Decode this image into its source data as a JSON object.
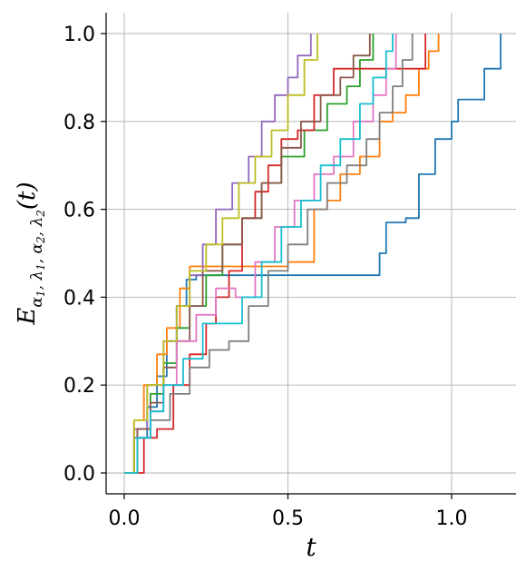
{
  "chart_data": {
    "type": "line",
    "xlabel": "t",
    "ylabel": "E_{α1,λ1,α2,λ2}(t)",
    "ylabel_parts": {
      "main": "E",
      "sub": "α",
      "s1": "1",
      "c1": ", λ",
      "s2": "1",
      "c2": ", α",
      "s3": "2",
      "c3": ", λ",
      "s4": "2",
      "arg": "(t)"
    },
    "xlim": [
      -0.05,
      1.2
    ],
    "ylim": [
      -0.05,
      1.05
    ],
    "xticks": [
      0.0,
      0.5,
      1.0
    ],
    "xtick_labels": [
      "0.0",
      "0.5",
      "1.0"
    ],
    "yticks": [
      0.0,
      0.2,
      0.4,
      0.6,
      0.8,
      1.0
    ],
    "ytick_labels": [
      "0.0",
      "0.2",
      "0.4",
      "0.6",
      "0.8",
      "1.0"
    ],
    "grid": true,
    "series": [
      {
        "color": "#1f77b4",
        "points": [
          [
            0.0,
            0.0
          ],
          [
            0.03,
            0.08
          ],
          [
            0.07,
            0.15
          ],
          [
            0.1,
            0.22
          ],
          [
            0.13,
            0.3
          ],
          [
            0.16,
            0.38
          ],
          [
            0.19,
            0.44
          ],
          [
            0.22,
            0.45
          ],
          [
            0.3,
            0.45
          ],
          [
            0.45,
            0.45
          ],
          [
            0.6,
            0.45
          ],
          [
            0.76,
            0.45
          ],
          [
            0.78,
            0.5
          ],
          [
            0.8,
            0.57
          ],
          [
            0.86,
            0.58
          ],
          [
            0.9,
            0.68
          ],
          [
            0.95,
            0.76
          ],
          [
            1.0,
            0.8
          ],
          [
            1.02,
            0.85
          ],
          [
            1.07,
            0.85
          ],
          [
            1.1,
            0.92
          ],
          [
            1.15,
            1.0
          ]
        ]
      },
      {
        "color": "#ff7f0e",
        "points": [
          [
            0.0,
            0.0
          ],
          [
            0.03,
            0.12
          ],
          [
            0.06,
            0.2
          ],
          [
            0.1,
            0.27
          ],
          [
            0.13,
            0.33
          ],
          [
            0.17,
            0.42
          ],
          [
            0.2,
            0.47
          ],
          [
            0.3,
            0.47
          ],
          [
            0.5,
            0.48
          ],
          [
            0.56,
            0.48
          ],
          [
            0.58,
            0.6
          ],
          [
            0.62,
            0.62
          ],
          [
            0.66,
            0.68
          ],
          [
            0.72,
            0.72
          ],
          [
            0.78,
            0.8
          ],
          [
            0.82,
            0.82
          ],
          [
            0.86,
            0.86
          ],
          [
            0.9,
            0.92
          ],
          [
            0.93,
            0.96
          ],
          [
            0.96,
            1.0
          ]
        ]
      },
      {
        "color": "#2ca02c",
        "points": [
          [
            0.0,
            0.0
          ],
          [
            0.04,
            0.1
          ],
          [
            0.08,
            0.18
          ],
          [
            0.12,
            0.25
          ],
          [
            0.16,
            0.33
          ],
          [
            0.2,
            0.38
          ],
          [
            0.25,
            0.45
          ],
          [
            0.3,
            0.52
          ],
          [
            0.36,
            0.58
          ],
          [
            0.42,
            0.66
          ],
          [
            0.48,
            0.72
          ],
          [
            0.55,
            0.78
          ],
          [
            0.62,
            0.84
          ],
          [
            0.68,
            0.88
          ],
          [
            0.72,
            0.94
          ],
          [
            0.76,
            1.0
          ]
        ]
      },
      {
        "color": "#d62728",
        "points": [
          [
            0.04,
            0.0
          ],
          [
            0.06,
            0.08
          ],
          [
            0.1,
            0.1
          ],
          [
            0.15,
            0.2
          ],
          [
            0.2,
            0.27
          ],
          [
            0.25,
            0.34
          ],
          [
            0.28,
            0.4
          ],
          [
            0.32,
            0.46
          ],
          [
            0.36,
            0.58
          ],
          [
            0.4,
            0.64
          ],
          [
            0.44,
            0.7
          ],
          [
            0.48,
            0.76
          ],
          [
            0.53,
            0.78
          ],
          [
            0.58,
            0.86
          ],
          [
            0.64,
            0.92
          ],
          [
            0.9,
            0.92
          ],
          [
            0.92,
            1.0
          ]
        ]
      },
      {
        "color": "#9467bd",
        "points": [
          [
            0.0,
            0.0
          ],
          [
            0.03,
            0.1
          ],
          [
            0.07,
            0.2
          ],
          [
            0.12,
            0.3
          ],
          [
            0.16,
            0.38
          ],
          [
            0.2,
            0.45
          ],
          [
            0.24,
            0.52
          ],
          [
            0.28,
            0.6
          ],
          [
            0.33,
            0.66
          ],
          [
            0.38,
            0.72
          ],
          [
            0.42,
            0.8
          ],
          [
            0.46,
            0.86
          ],
          [
            0.5,
            0.9
          ],
          [
            0.53,
            0.95
          ],
          [
            0.57,
            1.0
          ]
        ]
      },
      {
        "color": "#8c564b",
        "points": [
          [
            0.0,
            0.0
          ],
          [
            0.04,
            0.1
          ],
          [
            0.08,
            0.16
          ],
          [
            0.12,
            0.24
          ],
          [
            0.16,
            0.3
          ],
          [
            0.2,
            0.38
          ],
          [
            0.24,
            0.46
          ],
          [
            0.3,
            0.52
          ],
          [
            0.36,
            0.58
          ],
          [
            0.42,
            0.66
          ],
          [
            0.48,
            0.74
          ],
          [
            0.54,
            0.8
          ],
          [
            0.6,
            0.86
          ],
          [
            0.66,
            0.9
          ],
          [
            0.7,
            0.95
          ],
          [
            0.75,
            1.0
          ]
        ]
      },
      {
        "color": "#e377c2",
        "points": [
          [
            0.0,
            0.0
          ],
          [
            0.04,
            0.08
          ],
          [
            0.08,
            0.14
          ],
          [
            0.12,
            0.2
          ],
          [
            0.16,
            0.3
          ],
          [
            0.22,
            0.36
          ],
          [
            0.28,
            0.42
          ],
          [
            0.34,
            0.4
          ],
          [
            0.4,
            0.48
          ],
          [
            0.46,
            0.56
          ],
          [
            0.52,
            0.62
          ],
          [
            0.58,
            0.68
          ],
          [
            0.64,
            0.72
          ],
          [
            0.7,
            0.8
          ],
          [
            0.76,
            0.86
          ],
          [
            0.8,
            0.92
          ],
          [
            0.83,
            1.0
          ]
        ]
      },
      {
        "color": "#7f7f7f",
        "points": [
          [
            0.0,
            0.0
          ],
          [
            0.04,
            0.08
          ],
          [
            0.08,
            0.12
          ],
          [
            0.14,
            0.18
          ],
          [
            0.2,
            0.24
          ],
          [
            0.26,
            0.28
          ],
          [
            0.32,
            0.3
          ],
          [
            0.38,
            0.38
          ],
          [
            0.44,
            0.46
          ],
          [
            0.5,
            0.52
          ],
          [
            0.56,
            0.6
          ],
          [
            0.62,
            0.66
          ],
          [
            0.68,
            0.7
          ],
          [
            0.74,
            0.76
          ],
          [
            0.78,
            0.82
          ],
          [
            0.82,
            0.88
          ],
          [
            0.85,
            0.94
          ],
          [
            0.88,
            1.0
          ]
        ]
      },
      {
        "color": "#bcbd22",
        "points": [
          [
            0.0,
            0.0
          ],
          [
            0.03,
            0.12
          ],
          [
            0.07,
            0.2
          ],
          [
            0.12,
            0.3
          ],
          [
            0.16,
            0.38
          ],
          [
            0.2,
            0.46
          ],
          [
            0.25,
            0.52
          ],
          [
            0.3,
            0.58
          ],
          [
            0.35,
            0.66
          ],
          [
            0.4,
            0.72
          ],
          [
            0.45,
            0.78
          ],
          [
            0.5,
            0.86
          ],
          [
            0.55,
            0.94
          ],
          [
            0.59,
            1.0
          ]
        ]
      },
      {
        "color": "#17becf",
        "points": [
          [
            0.0,
            0.0
          ],
          [
            0.04,
            0.08
          ],
          [
            0.08,
            0.14
          ],
          [
            0.12,
            0.2
          ],
          [
            0.18,
            0.26
          ],
          [
            0.24,
            0.34
          ],
          [
            0.3,
            0.34
          ],
          [
            0.36,
            0.4
          ],
          [
            0.42,
            0.48
          ],
          [
            0.48,
            0.56
          ],
          [
            0.54,
            0.62
          ],
          [
            0.6,
            0.7
          ],
          [
            0.66,
            0.76
          ],
          [
            0.72,
            0.84
          ],
          [
            0.76,
            0.9
          ],
          [
            0.8,
            0.96
          ],
          [
            0.82,
            1.0
          ]
        ]
      }
    ]
  }
}
